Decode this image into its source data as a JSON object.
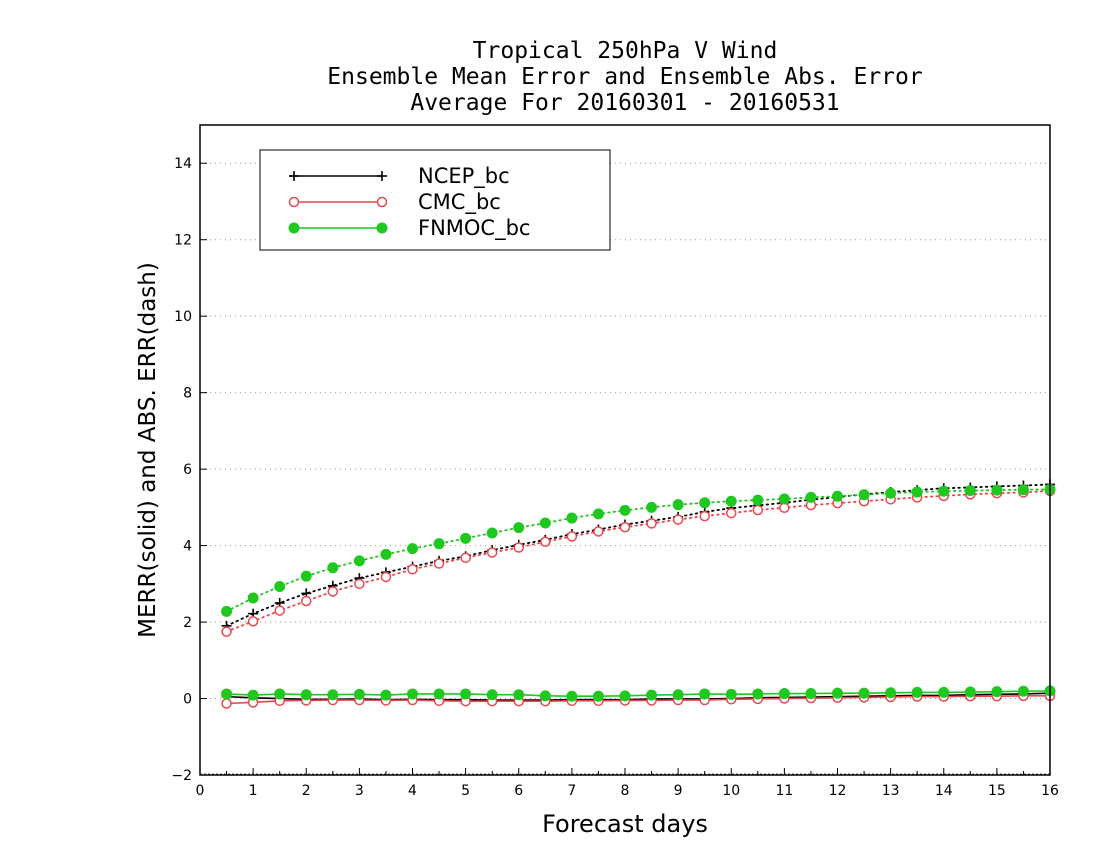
{
  "chart_data": {
    "type": "line",
    "title_lines": [
      "Tropical 250hPa V Wind",
      "Ensemble Mean Error and Ensemble Abs. Error",
      "Average For 20160301 - 20160531"
    ],
    "xlabel": "Forecast days",
    "ylabel": "MERR(solid) and ABS. ERR(dash)",
    "xlim": [
      0,
      16
    ],
    "ylim": [
      -2,
      15
    ],
    "xticks": [
      0,
      1,
      2,
      3,
      4,
      5,
      6,
      7,
      8,
      9,
      10,
      11,
      12,
      13,
      14,
      15,
      16
    ],
    "yticks": [
      -2,
      0,
      2,
      4,
      6,
      8,
      10,
      12,
      14
    ],
    "grid": "dotted horizontal at y ticks",
    "legend_position": "top-left",
    "x": [
      0.5,
      1,
      1.5,
      2,
      2.5,
      3,
      3.5,
      4,
      4.5,
      5,
      5.5,
      6,
      6.5,
      7,
      7.5,
      8,
      8.5,
      9,
      9.5,
      10,
      10.5,
      11,
      11.5,
      12,
      12.5,
      13,
      13.5,
      14,
      14.5,
      15,
      15.5,
      16
    ],
    "series": [
      {
        "name": "NCEP_bc",
        "color": "#000000",
        "marker": "plus",
        "merr": [
          0.05,
          0.02,
          0.0,
          -0.02,
          -0.02,
          -0.01,
          -0.03,
          -0.02,
          -0.03,
          -0.03,
          -0.04,
          -0.04,
          -0.04,
          -0.03,
          -0.03,
          -0.03,
          -0.01,
          -0.01,
          -0.01,
          0.0,
          0.02,
          0.03,
          0.04,
          0.05,
          0.06,
          0.07,
          0.08,
          0.08,
          0.1,
          0.11,
          0.12,
          0.14
        ],
        "abs_err": [
          1.9,
          2.22,
          2.5,
          2.75,
          2.95,
          3.15,
          3.3,
          3.45,
          3.6,
          3.72,
          3.88,
          4.02,
          4.15,
          4.3,
          4.42,
          4.55,
          4.65,
          4.75,
          4.88,
          4.98,
          5.05,
          5.12,
          5.2,
          5.27,
          5.34,
          5.4,
          5.45,
          5.5,
          5.52,
          5.55,
          5.57,
          5.6
        ]
      },
      {
        "name": "CMC_bc",
        "color": "#e8474e",
        "marker": "open-circle",
        "merr": [
          -0.13,
          -0.1,
          -0.06,
          -0.05,
          -0.04,
          -0.04,
          -0.05,
          -0.04,
          -0.06,
          -0.07,
          -0.07,
          -0.07,
          -0.07,
          -0.06,
          -0.06,
          -0.05,
          -0.05,
          -0.04,
          -0.04,
          -0.02,
          -0.01,
          0.0,
          0.01,
          0.02,
          0.03,
          0.04,
          0.05,
          0.05,
          0.06,
          0.06,
          0.07,
          0.07
        ],
        "abs_err": [
          1.75,
          2.02,
          2.3,
          2.55,
          2.8,
          3.0,
          3.18,
          3.38,
          3.53,
          3.68,
          3.82,
          3.95,
          4.1,
          4.24,
          4.37,
          4.48,
          4.58,
          4.68,
          4.77,
          4.85,
          4.93,
          4.99,
          5.06,
          5.11,
          5.16,
          5.21,
          5.26,
          5.3,
          5.34,
          5.37,
          5.39,
          5.43
        ]
      },
      {
        "name": "FNMOC_bc",
        "color": "#1ec81e",
        "marker": "filled-circle",
        "merr": [
          0.12,
          0.09,
          0.12,
          0.1,
          0.1,
          0.11,
          0.09,
          0.12,
          0.12,
          0.12,
          0.1,
          0.1,
          0.07,
          0.06,
          0.06,
          0.07,
          0.09,
          0.1,
          0.12,
          0.11,
          0.12,
          0.13,
          0.13,
          0.14,
          0.14,
          0.15,
          0.16,
          0.16,
          0.17,
          0.18,
          0.19,
          0.2
        ],
        "abs_err": [
          2.28,
          2.63,
          2.93,
          3.2,
          3.42,
          3.6,
          3.77,
          3.92,
          4.05,
          4.19,
          4.33,
          4.47,
          4.59,
          4.72,
          4.83,
          4.92,
          5.0,
          5.07,
          5.12,
          5.16,
          5.19,
          5.22,
          5.26,
          5.29,
          5.33,
          5.37,
          5.4,
          5.42,
          5.44,
          5.45,
          5.46,
          5.47
        ]
      }
    ]
  }
}
